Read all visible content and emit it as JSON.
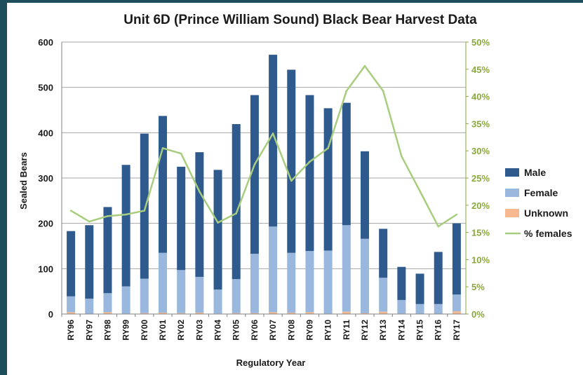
{
  "chart_data": {
    "type": "bar",
    "title": "Unit 6D (Prince William Sound) Black Bear Harvest Data",
    "xlabel": "Regulatory Year",
    "ylabel": "Sealed Bears",
    "ylim": [
      0,
      600
    ],
    "y_ticks": [
      "0",
      "100",
      "200",
      "300",
      "400",
      "500",
      "600"
    ],
    "y2lim": [
      0,
      0.5
    ],
    "y2_ticks": [
      "0%",
      "5%",
      "10%",
      "15%",
      "20%",
      "25%",
      "30%",
      "35%",
      "40%",
      "45%",
      "50%"
    ],
    "grid": "horizontal",
    "legend_position": "right",
    "categories": [
      "RY96",
      "RY97",
      "RY98",
      "RY99",
      "RY00",
      "RY01",
      "RY02",
      "RY03",
      "RY04",
      "RY05",
      "RY06",
      "RY07",
      "RY08",
      "RY09",
      "RY10",
      "RY11",
      "RY12",
      "RY13",
      "RY14",
      "RY15",
      "RY16",
      "RY17"
    ],
    "series": [
      {
        "name": "Male",
        "kind": "stacked-bar",
        "color": "#2f5a8e",
        "values": [
          144,
          162,
          190,
          268,
          320,
          302,
          228,
          275,
          264,
          342,
          350,
          379,
          404,
          344,
          314,
          270,
          193,
          108,
          73,
          67,
          115,
          157
        ]
      },
      {
        "name": "Female",
        "kind": "stacked-bar",
        "color": "#9ab7dd",
        "values": [
          35,
          34,
          42,
          60,
          76,
          132,
          95,
          79,
          53,
          75,
          131,
          189,
          132,
          135,
          139,
          191,
          164,
          75,
          30,
          22,
          22,
          37
        ]
      },
      {
        "name": "Unknown",
        "kind": "stacked-bar",
        "color": "#f5b88f",
        "values": [
          4,
          0,
          4,
          1,
          2,
          3,
          2,
          3,
          1,
          2,
          2,
          4,
          3,
          4,
          1,
          5,
          2,
          5,
          1,
          0,
          0,
          6
        ]
      },
      {
        "name": "% females",
        "kind": "line",
        "axis": "right",
        "color": "#a8cd7e",
        "values": [
          0.19,
          0.17,
          0.18,
          0.183,
          0.19,
          0.305,
          0.295,
          0.225,
          0.168,
          0.185,
          0.275,
          0.332,
          0.245,
          0.28,
          0.305,
          0.41,
          0.456,
          0.41,
          0.29,
          0.226,
          0.161,
          0.183
        ]
      }
    ]
  }
}
